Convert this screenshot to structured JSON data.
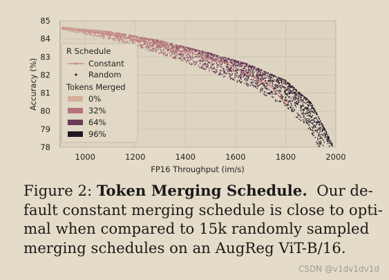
{
  "chart_data": {
    "type": "scatter",
    "xlabel": "FP16 Throughput (im/s)",
    "ylabel": "Accuracy (%)",
    "xlim": [
      900,
      2000
    ],
    "ylim": [
      78,
      85
    ],
    "xticks": [
      "1000",
      "1200",
      "1400",
      "1600",
      "1800",
      "2000"
    ],
    "yticks": [
      "78",
      "79",
      "80",
      "81",
      "82",
      "83",
      "84",
      "85"
    ],
    "grid": true,
    "legend_position": "center-left",
    "legend": {
      "title_schedule": "R Schedule",
      "constant_label": "Constant",
      "random_label": "Random",
      "title_tokens": "Tokens Merged",
      "tokens": [
        {
          "label": "0%",
          "color": "#d4b19a"
        },
        {
          "label": "32%",
          "color": "#b5727a"
        },
        {
          "label": "64%",
          "color": "#6e3a5a"
        },
        {
          "label": "96%",
          "color": "#231726"
        }
      ]
    },
    "series": [
      {
        "name": "Constant",
        "color": "#c87f80",
        "x": [
          910,
          1070,
          1170,
          1240,
          1310,
          1350,
          1420,
          1485,
          1565,
          1640,
          1700,
          1740,
          1800
        ],
        "y": [
          84.6,
          84.3,
          84.05,
          83.85,
          83.6,
          83.35,
          83.25,
          82.9,
          82.65,
          82.1,
          81.65,
          81.4,
          80.4
        ]
      },
      {
        "name": "Random",
        "description_band": "upper-edge",
        "upper_edge_x": [
          910,
          1100,
          1300,
          1500,
          1650,
          1800,
          1900,
          1990
        ],
        "upper_edge_y": [
          84.65,
          84.4,
          83.9,
          83.2,
          82.6,
          81.7,
          80.5,
          78.1
        ]
      }
    ]
  },
  "caption": {
    "line1_prefix": "Figure 2: ",
    "line1_bold": "Token Merging Schedule.",
    "line1_suffix": "  Our de-",
    "line2": "fault constant merging schedule is close to opti-",
    "line3": "mal when compared to 15k randomly sampled",
    "line4": "merging schedules on an AugReg ViT-B/16."
  },
  "watermark": "CSDN @v1dv1dv1d"
}
